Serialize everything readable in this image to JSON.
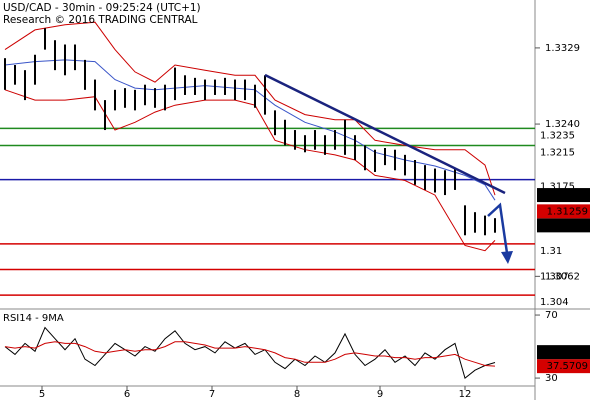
{
  "header": {
    "title": "USD/CAD - 30min - 09:25:24 (UTC+1)",
    "subtitle": "Research © 2016 TRADING CENTRAL"
  },
  "chart_data": [
    {
      "type": "ohlc",
      "x": [
        0,
        1,
        2,
        3,
        4,
        5,
        6,
        7,
        8,
        9,
        10,
        11,
        12,
        13,
        14,
        15,
        16,
        17,
        18,
        19,
        20,
        21,
        22,
        23,
        24,
        25,
        26,
        27,
        28,
        29,
        30,
        31,
        32,
        33,
        34,
        35,
        36,
        37,
        38,
        39,
        40,
        41,
        42,
        43,
        44,
        45,
        46,
        47,
        48,
        49
      ],
      "high": [
        1.3317,
        1.3309,
        1.3303,
        1.3321,
        1.3352,
        1.3338,
        1.3333,
        1.3333,
        1.3315,
        1.3292,
        1.3268,
        1.328,
        1.3282,
        1.328,
        1.3286,
        1.3282,
        1.3286,
        1.3306,
        1.3297,
        1.3294,
        1.3292,
        1.3292,
        1.3294,
        1.3292,
        1.3292,
        1.3286,
        1.3297,
        1.3256,
        1.3245,
        1.3233,
        1.3227,
        1.3233,
        1.3227,
        1.3233,
        1.3245,
        1.3227,
        1.3215,
        1.321,
        1.3212,
        1.321,
        1.3204,
        1.3198,
        1.3192,
        1.3188,
        1.3186,
        1.3188,
        1.3145,
        1.3137,
        1.3133,
        1.313
      ],
      "low": [
        1.328,
        1.3286,
        1.3268,
        1.3286,
        1.3327,
        1.3303,
        1.3297,
        1.3303,
        1.328,
        1.3256,
        1.3233,
        1.3256,
        1.3259,
        1.3256,
        1.3262,
        1.3259,
        1.3256,
        1.3268,
        1.3274,
        1.3274,
        1.3268,
        1.3274,
        1.3274,
        1.3268,
        1.3268,
        1.3259,
        1.3251,
        1.3227,
        1.3215,
        1.321,
        1.3207,
        1.321,
        1.3204,
        1.321,
        1.3204,
        1.3198,
        1.3186,
        1.3184,
        1.3192,
        1.3186,
        1.318,
        1.3169,
        1.3163,
        1.316,
        1.3157,
        1.3163,
        1.311,
        1.3113,
        1.311,
        1.3113
      ],
      "color": "#000000",
      "xlim": [
        -0.5,
        53
      ],
      "ylim": [
        1.3025,
        1.3385
      ],
      "yticks": [
        1.3329,
        {
          "value": 1.324,
          "label": "1.3240"
        },
        1.3062
      ],
      "bands": {
        "x": [
          0,
          3,
          6,
          9,
          11,
          13,
          15,
          17,
          20,
          23,
          25,
          27,
          30,
          33,
          35,
          37,
          40,
          43,
          46,
          48,
          49
        ],
        "upper": [
          1.3327,
          1.335,
          1.3356,
          1.3359,
          1.3327,
          1.3301,
          1.3289,
          1.3309,
          1.3303,
          1.3297,
          1.3297,
          1.3268,
          1.3251,
          1.3245,
          1.3245,
          1.3221,
          1.3215,
          1.321,
          1.321,
          1.3192,
          1.3157
        ],
        "lower": [
          1.328,
          1.3268,
          1.3268,
          1.3272,
          1.3233,
          1.3242,
          1.3254,
          1.3262,
          1.3268,
          1.3268,
          1.3262,
          1.3221,
          1.321,
          1.3204,
          1.3198,
          1.318,
          1.3174,
          1.3157,
          1.3098,
          1.3092,
          1.3104
        ],
        "middle": [
          1.3309,
          1.3313,
          1.3315,
          1.3313,
          1.3292,
          1.3282,
          1.328,
          1.3282,
          1.3285,
          1.3282,
          1.328,
          1.3262,
          1.3242,
          1.3231,
          1.3221,
          1.3207,
          1.3198,
          1.3191,
          1.318,
          1.3169,
          1.3151
        ],
        "band_color": "#cc0000",
        "middle_color": "#3a55c8"
      },
      "levels": [
        {
          "value": 1.3235,
          "color": "#1f8a1f"
        },
        {
          "value": 1.3215,
          "color": "#1f8a1f"
        },
        {
          "value": 1.3175,
          "color": "#1a1aa8"
        },
        {
          "value": 1.31,
          "color": "#d40000"
        },
        {
          "value": 1.307,
          "color": "#d40000"
        },
        {
          "value": 1.304,
          "color": "#d40000"
        }
      ],
      "price_tags": [
        {
          "value": 1.3157,
          "color": "#000000"
        },
        {
          "value": 1.31259,
          "color": "#d40000"
        },
        {
          "value": 1.31216,
          "color": "#000000"
        }
      ]
    },
    {
      "type": "line",
      "title": "RSI14 - 9MA",
      "x": [
        0,
        1,
        2,
        3,
        4,
        5,
        6,
        7,
        8,
        9,
        10,
        11,
        12,
        13,
        14,
        15,
        16,
        17,
        18,
        19,
        20,
        21,
        22,
        23,
        24,
        25,
        26,
        27,
        28,
        29,
        30,
        31,
        32,
        33,
        34,
        35,
        36,
        37,
        38,
        39,
        40,
        41,
        42,
        43,
        44,
        45,
        46,
        47,
        48,
        49
      ],
      "series": [
        {
          "color": "#000000",
          "values": [
            50,
            45,
            52,
            47,
            62,
            55,
            48,
            55,
            42,
            38,
            45,
            52,
            48,
            44,
            50,
            47,
            55,
            60,
            52,
            48,
            50,
            46,
            53,
            49,
            52,
            45,
            48,
            40,
            36,
            42,
            38,
            44,
            40,
            46,
            58,
            45,
            38,
            42,
            48,
            40,
            44,
            38,
            46,
            42,
            48,
            52,
            30,
            35,
            38,
            39.8777
          ]
        },
        {
          "color": "#cc0000",
          "values": [
            50,
            49,
            50,
            49,
            52,
            53,
            52,
            52,
            50,
            47,
            46,
            47,
            48,
            47,
            48,
            48,
            50,
            53,
            53,
            52,
            51,
            49,
            49,
            49,
            50,
            49,
            48,
            46,
            43,
            42,
            40,
            40,
            40,
            42,
            45,
            46,
            45,
            44,
            44,
            43,
            43,
            42,
            43,
            43,
            44,
            45,
            42,
            40,
            38,
            37.5709
          ]
        }
      ],
      "xlim": [
        -0.5,
        53
      ],
      "ylim": [
        25.6,
        73.2
      ],
      "yticks": [
        70,
        30
      ],
      "xticks": [
        {
          "value": 3.7,
          "label": "5"
        },
        {
          "value": 12.2,
          "label": "6"
        },
        {
          "value": 20.7,
          "label": "7"
        },
        {
          "value": 29.2,
          "label": "8"
        },
        {
          "value": 37.5,
          "label": "9"
        },
        {
          "value": 46,
          "label": "12"
        }
      ],
      "tags": [
        {
          "value": 39.8777,
          "color": "#000000"
        },
        {
          "value": 37.5709,
          "color": "#d40000"
        }
      ]
    }
  ]
}
